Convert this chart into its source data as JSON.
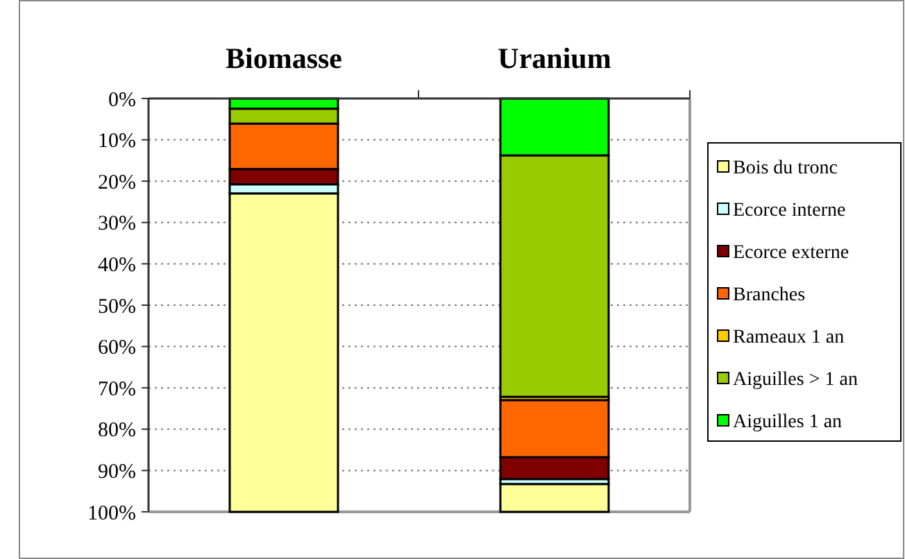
{
  "chart_data": {
    "type": "bar",
    "stacked": true,
    "categories": [
      "Biomasse",
      "Uranium"
    ],
    "series": [
      {
        "name": "Aiguilles 1 an",
        "color": "#00ff00",
        "values": [
          2.5,
          13.8
        ]
      },
      {
        "name": "Aiguilles > 1 an",
        "color": "#99cc00",
        "values": [
          3.6,
          58.4
        ]
      },
      {
        "name": "Rameaux 1 an",
        "color": "#ffcc00",
        "values": [
          null,
          0.8
        ]
      },
      {
        "name": "Branches",
        "color": "#ff6600",
        "values": [
          11,
          13.8
        ]
      },
      {
        "name": "Ecorce externe",
        "color": "#800000",
        "values": [
          3.7,
          5.3
        ]
      },
      {
        "name": "Ecorce interne",
        "color": "#ccffff",
        "values": [
          2.2,
          1.2
        ]
      },
      {
        "name": "Bois du tronc",
        "color": "#ffff99",
        "values": [
          77,
          6.7
        ]
      }
    ],
    "ylim": [
      100,
      0
    ],
    "yticks": [
      {
        "value": 0,
        "label": "0%"
      },
      {
        "value": 10,
        "label": "10%"
      },
      {
        "value": 20,
        "label": "20%"
      },
      {
        "value": 30,
        "label": "30%"
      },
      {
        "value": 40,
        "label": "40%"
      },
      {
        "value": 50,
        "label": "50%"
      },
      {
        "value": 60,
        "label": "60%"
      },
      {
        "value": 70,
        "label": "70%"
      },
      {
        "value": 80,
        "label": "80%"
      },
      {
        "value": 90,
        "label": "90%"
      },
      {
        "value": 100,
        "label": "100%"
      }
    ],
    "grid": "y",
    "legend": "right"
  }
}
